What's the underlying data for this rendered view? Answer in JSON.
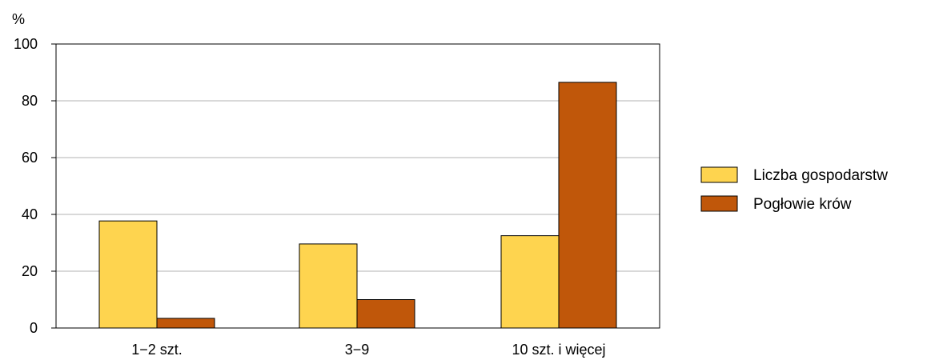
{
  "chart_data": {
    "type": "bar",
    "ylabel": "%",
    "ylim": [
      0,
      100
    ],
    "yticks": [
      0,
      20,
      40,
      60,
      80,
      100
    ],
    "grid": true,
    "legend_position": "right",
    "categories": [
      "1−2 szt.",
      "3−9",
      "10 szt. i więcej"
    ],
    "series": [
      {
        "name": "Liczba gospodarstw",
        "color": "#FED44F",
        "values": [
          37.7,
          29.6,
          32.5
        ]
      },
      {
        "name": "Pogłowie krów",
        "color": "#C0570A",
        "values": [
          3.4,
          10.0,
          86.5
        ]
      }
    ]
  }
}
